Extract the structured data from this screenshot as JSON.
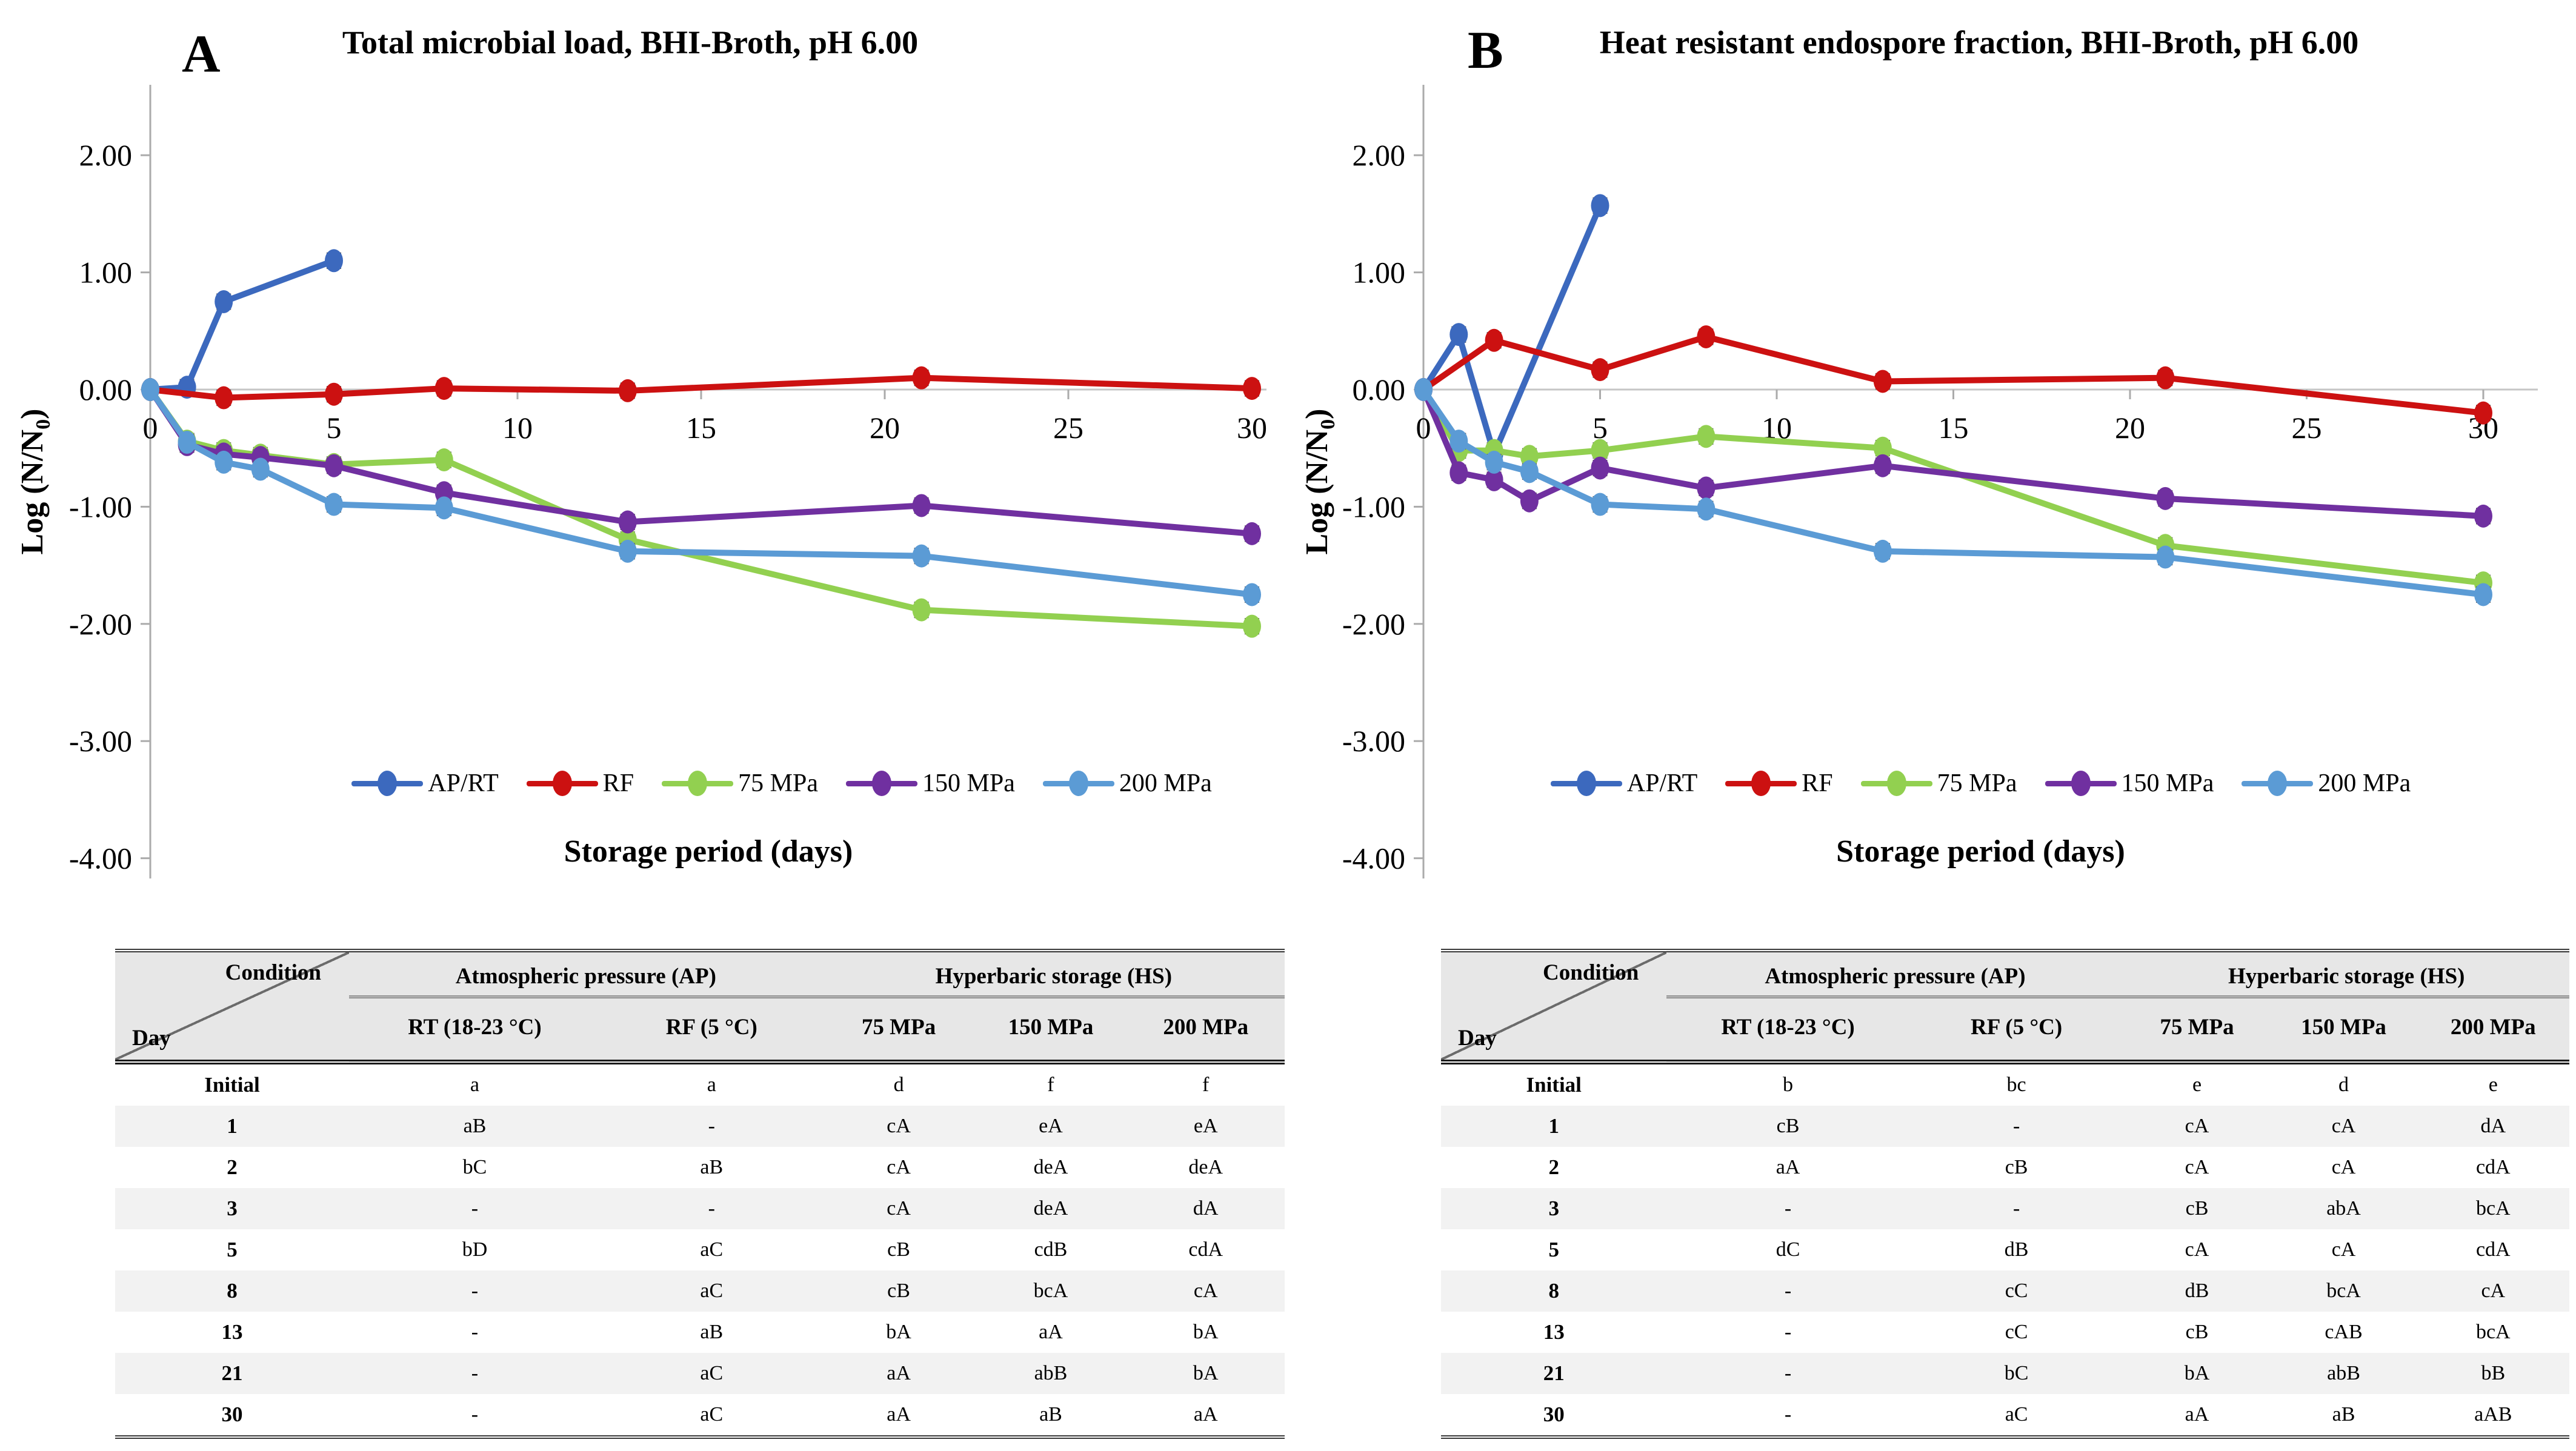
{
  "figure": {
    "panels": [
      {
        "label": "A"
      },
      {
        "label": "B"
      }
    ]
  },
  "chart_data": [
    {
      "type": "line",
      "panel_label": "A",
      "title": "Total microbial load, BHI-Broth, pH 6.00",
      "xlabel": "Storage period (days)",
      "ylabel": {
        "pre": "Log (N/N",
        "sub": "0",
        "post": ")"
      },
      "xlim": [
        0,
        30
      ],
      "ylim": [
        -4.0,
        2.6
      ],
      "xticks": [
        0,
        5,
        10,
        15,
        20,
        25,
        30
      ],
      "yticks": [
        2,
        1,
        0,
        -1,
        -2,
        -3,
        -4
      ],
      "ytick_labels": [
        "2.00",
        "1.00",
        "0.00",
        "-1.00",
        "-2.00",
        "-3.00",
        "-4.00"
      ],
      "grid": false,
      "legend_position": "bottom-inside",
      "error_bar": 0.06,
      "series": [
        {
          "name": "AP/RT",
          "color": "#3C69BE",
          "x": [
            0,
            1,
            2,
            5
          ],
          "y": [
            0.0,
            0.02,
            0.75,
            1.1
          ]
        },
        {
          "name": "RF",
          "color": "#CC1111",
          "x": [
            0,
            2,
            5,
            8,
            13,
            21,
            30
          ],
          "y": [
            0.0,
            -0.07,
            -0.04,
            0.01,
            -0.01,
            0.1,
            0.01
          ]
        },
        {
          "name": "75 MPa",
          "color": "#92D050",
          "x": [
            0,
            1,
            2,
            3,
            5,
            8,
            13,
            21,
            30
          ],
          "y": [
            0.0,
            -0.44,
            -0.52,
            -0.56,
            -0.64,
            -0.6,
            -1.28,
            -1.88,
            -2.02
          ]
        },
        {
          "name": "150 MPa",
          "color": "#7030A0",
          "x": [
            0,
            1,
            2,
            3,
            5,
            8,
            13,
            21,
            30
          ],
          "y": [
            0.0,
            -0.47,
            -0.55,
            -0.58,
            -0.65,
            -0.88,
            -1.13,
            -0.99,
            -1.23
          ]
        },
        {
          "name": "200 MPa",
          "color": "#5B9BD5",
          "x": [
            0,
            1,
            2,
            3,
            5,
            8,
            13,
            21,
            30
          ],
          "y": [
            0.0,
            -0.45,
            -0.62,
            -0.68,
            -0.98,
            -1.01,
            -1.38,
            -1.42,
            -1.75
          ]
        }
      ]
    },
    {
      "type": "line",
      "panel_label": "B",
      "title": "Heat resistant endospore fraction, BHI-Broth, pH 6.00",
      "xlabel": "Storage period (days)",
      "ylabel": {
        "pre": "Log (N/N",
        "sub": "0",
        "post": ")"
      },
      "xlim": [
        0,
        30
      ],
      "ylim": [
        -4.0,
        2.6
      ],
      "xticks": [
        0,
        5,
        10,
        15,
        20,
        25,
        30
      ],
      "yticks": [
        2,
        1,
        0,
        -1,
        -2,
        -3,
        -4
      ],
      "ytick_labels": [
        "2.00",
        "1.00",
        "0.00",
        "-1.00",
        "-2.00",
        "-3.00",
        "-4.00"
      ],
      "grid": false,
      "legend_position": "bottom-inside",
      "error_bar": 0.06,
      "series": [
        {
          "name": "AP/RT",
          "color": "#3C69BE",
          "x": [
            0,
            1,
            2,
            5
          ],
          "y": [
            0.0,
            0.47,
            -0.55,
            1.57
          ]
        },
        {
          "name": "RF",
          "color": "#CC1111",
          "x": [
            0,
            2,
            5,
            8,
            13,
            21,
            30
          ],
          "y": [
            0.0,
            0.42,
            0.17,
            0.45,
            0.07,
            0.1,
            -0.2
          ]
        },
        {
          "name": "75 MPa",
          "color": "#92D050",
          "x": [
            0,
            1,
            2,
            3,
            5,
            8,
            13,
            21,
            30
          ],
          "y": [
            0.0,
            -0.52,
            -0.52,
            -0.57,
            -0.52,
            -0.4,
            -0.5,
            -1.33,
            -1.65
          ]
        },
        {
          "name": "150 MPa",
          "color": "#7030A0",
          "x": [
            0,
            1,
            2,
            3,
            5,
            8,
            13,
            21,
            30
          ],
          "y": [
            0.0,
            -0.71,
            -0.77,
            -0.95,
            -0.67,
            -0.84,
            -0.65,
            -0.93,
            -1.08
          ]
        },
        {
          "name": "200 MPa",
          "color": "#5B9BD5",
          "x": [
            0,
            1,
            2,
            3,
            5,
            8,
            13,
            21,
            30
          ],
          "y": [
            0.0,
            -0.44,
            -0.62,
            -0.7,
            -0.98,
            -1.02,
            -1.38,
            -1.43,
            -1.75
          ]
        }
      ]
    }
  ],
  "tables": [
    {
      "corner": {
        "top": "Condition",
        "bottom": "Day"
      },
      "groups": [
        {
          "label": "Atmospheric pressure (AP)",
          "span": 2
        },
        {
          "label": "Hyperbaric storage (HS)",
          "span": 3
        }
      ],
      "columns": [
        "RT (18-23 °C)",
        "RF (5 °C)",
        "75 MPa",
        "150 MPa",
        "200 MPa"
      ],
      "rows": [
        {
          "day": "Initial",
          "values": [
            "a",
            "a",
            "d",
            "f",
            "f"
          ]
        },
        {
          "day": "1",
          "values": [
            "aB",
            "-",
            "cA",
            "eA",
            "eA"
          ]
        },
        {
          "day": "2",
          "values": [
            "bC",
            "aB",
            "cA",
            "deA",
            "deA"
          ]
        },
        {
          "day": "3",
          "values": [
            "-",
            "-",
            "cA",
            "deA",
            "dA"
          ]
        },
        {
          "day": "5",
          "values": [
            "bD",
            "aC",
            "cB",
            "cdB",
            "cdA"
          ]
        },
        {
          "day": "8",
          "values": [
            "-",
            "aC",
            "cB",
            "bcA",
            "cA"
          ]
        },
        {
          "day": "13",
          "values": [
            "-",
            "aB",
            "bA",
            "aA",
            "bA"
          ]
        },
        {
          "day": "21",
          "values": [
            "-",
            "aC",
            "aA",
            "abB",
            "bA"
          ]
        },
        {
          "day": "30",
          "values": [
            "-",
            "aC",
            "aA",
            "aB",
            "aA"
          ]
        }
      ]
    },
    {
      "corner": {
        "top": "Condition",
        "bottom": "Day"
      },
      "groups": [
        {
          "label": "Atmospheric pressure (AP)",
          "span": 2
        },
        {
          "label": "Hyperbaric storage (HS)",
          "span": 3
        }
      ],
      "columns": [
        "RT (18-23 °C)",
        "RF (5 °C)",
        "75 MPa",
        "150 MPa",
        "200 MPa"
      ],
      "rows": [
        {
          "day": "Initial",
          "values": [
            "b",
            "bc",
            "e",
            "d",
            "e"
          ]
        },
        {
          "day": "1",
          "values": [
            "cB",
            "-",
            "cA",
            "cA",
            "dA"
          ]
        },
        {
          "day": "2",
          "values": [
            "aA",
            "cB",
            "cA",
            "cA",
            "cdA"
          ]
        },
        {
          "day": "3",
          "values": [
            "-",
            "-",
            "cB",
            "abA",
            "bcA"
          ]
        },
        {
          "day": "5",
          "values": [
            "dC",
            "dB",
            "cA",
            "cA",
            "cdA"
          ]
        },
        {
          "day": "8",
          "values": [
            "-",
            "cC",
            "dB",
            "bcA",
            "cA"
          ]
        },
        {
          "day": "13",
          "values": [
            "-",
            "cC",
            "cB",
            "cAB",
            "bcA"
          ]
        },
        {
          "day": "21",
          "values": [
            "-",
            "bC",
            "bA",
            "abB",
            "bB"
          ]
        },
        {
          "day": "30",
          "values": [
            "-",
            "aC",
            "aA",
            "aB",
            "aAB"
          ]
        }
      ]
    }
  ]
}
